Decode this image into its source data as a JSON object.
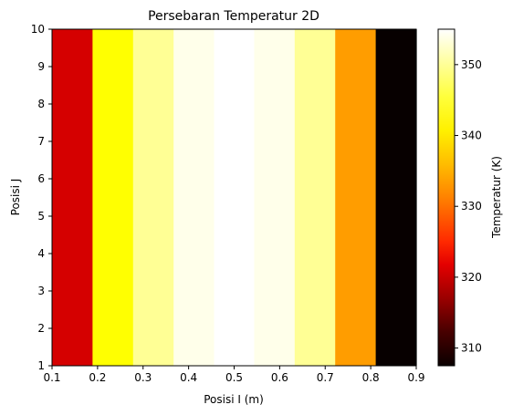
{
  "chart_data": {
    "type": "heatmap",
    "title": "Persebaran Temperatur 2D",
    "xlabel": "Posisi I (m)",
    "ylabel": "Posisi J",
    "xlim": [
      0.1,
      0.9
    ],
    "ylim": [
      1,
      10
    ],
    "xticks": [
      "0.1",
      "0.2",
      "0.3",
      "0.4",
      "0.5",
      "0.6",
      "0.7",
      "0.8",
      "0.9"
    ],
    "yticks": [
      "1",
      "2",
      "3",
      "4",
      "5",
      "6",
      "7",
      "8",
      "9",
      "10"
    ],
    "colormap": "hot",
    "columns": [
      {
        "x_from": 0.1,
        "x_to": 0.189,
        "value": 322
      },
      {
        "x_from": 0.189,
        "x_to": 0.278,
        "value": 343
      },
      {
        "x_from": 0.278,
        "x_to": 0.367,
        "value": 350
      },
      {
        "x_from": 0.367,
        "x_to": 0.456,
        "value": 354
      },
      {
        "x_from": 0.456,
        "x_to": 0.544,
        "value": 355
      },
      {
        "x_from": 0.544,
        "x_to": 0.633,
        "value": 354
      },
      {
        "x_from": 0.633,
        "x_to": 0.722,
        "value": 350
      },
      {
        "x_from": 0.722,
        "x_to": 0.811,
        "value": 336
      },
      {
        "x_from": 0.811,
        "x_to": 0.9,
        "value": 308
      }
    ],
    "colorbar": {
      "label": "Temperatur (K)",
      "range": [
        307.5,
        355
      ],
      "ticks": [
        "310",
        "320",
        "330",
        "340",
        "350"
      ]
    }
  }
}
